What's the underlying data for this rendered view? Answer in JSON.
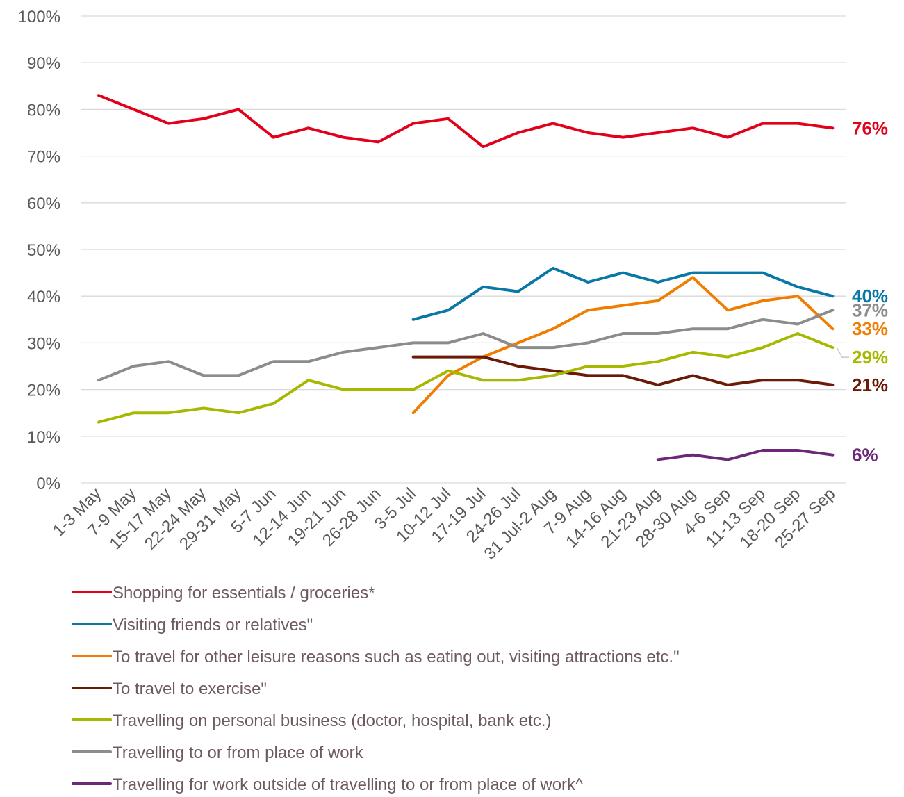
{
  "chart_data": {
    "type": "line",
    "title": "",
    "xlabel": "",
    "ylabel": "",
    "ylim": [
      0,
      100
    ],
    "ytick_labels": [
      "0%",
      "10%",
      "20%",
      "30%",
      "40%",
      "50%",
      "60%",
      "70%",
      "80%",
      "90%",
      "100%"
    ],
    "grid": "horizontal",
    "legend_position": "bottom",
    "categories": [
      "1-3 May",
      "7-9 May",
      "15-17 May",
      "22-24 May",
      "29-31 May",
      "5-7 Jun",
      "12-14 Jun",
      "19-21 Jun",
      "26-28 Jun",
      "3-5 Jul",
      "10-12 Jul",
      "17-19 Jul",
      "24-26 Jul",
      "31 Jul-2 Aug",
      "7-9 Aug",
      "14-16 Aug",
      "21-23 Aug",
      "28-30 Aug",
      "4-6 Sep",
      "11-13 Sep",
      "18-20 Sep",
      "25-27 Sep"
    ],
    "series": [
      {
        "name": "Shopping for essentials / groceries*",
        "color": "#e2001a",
        "end_label": "76%",
        "values": [
          83,
          80,
          77,
          78,
          80,
          74,
          76,
          74,
          73,
          77,
          78,
          72,
          75,
          77,
          75,
          74,
          75,
          76,
          74,
          77,
          77,
          76
        ]
      },
      {
        "name": "Visiting friends or relatives\"",
        "color": "#0a78a6",
        "end_label": "40%",
        "values": [
          null,
          null,
          null,
          null,
          null,
          null,
          null,
          null,
          null,
          35,
          37,
          42,
          41,
          46,
          43,
          45,
          43,
          45,
          45,
          45,
          42,
          40
        ]
      },
      {
        "name": "To travel for other leisure reasons such as eating out, visiting attractions etc.\"",
        "color": "#f07d00",
        "end_label": "33%",
        "values": [
          null,
          null,
          null,
          null,
          null,
          null,
          null,
          null,
          null,
          15,
          23,
          27,
          30,
          33,
          37,
          38,
          39,
          44,
          37,
          39,
          40,
          33
        ]
      },
      {
        "name": "To travel to exercise\"",
        "color": "#6b1a07",
        "end_label": "21%",
        "values": [
          null,
          null,
          null,
          null,
          null,
          null,
          null,
          null,
          null,
          27,
          27,
          27,
          25,
          24,
          23,
          23,
          21,
          23,
          21,
          22,
          22,
          21
        ]
      },
      {
        "name": "Travelling on personal business (doctor, hospital, bank etc.)",
        "color": "#a6b800",
        "end_label": "29%",
        "values": [
          13,
          15,
          15,
          16,
          15,
          17,
          22,
          20,
          20,
          20,
          24,
          22,
          22,
          23,
          25,
          25,
          26,
          28,
          27,
          29,
          32,
          29
        ]
      },
      {
        "name": "Travelling to or from place of work",
        "color": "#8c8c8c",
        "end_label": "37%",
        "values": [
          22,
          25,
          26,
          23,
          23,
          26,
          26,
          28,
          29,
          30,
          30,
          32,
          29,
          29,
          30,
          32,
          32,
          33,
          33,
          35,
          34,
          37
        ]
      },
      {
        "name": "Travelling for work outside of travelling to or from place of work^",
        "color": "#6a2877",
        "end_label": "6%",
        "values": [
          null,
          null,
          null,
          null,
          null,
          null,
          null,
          null,
          null,
          null,
          null,
          null,
          null,
          null,
          null,
          null,
          5,
          6,
          5,
          7,
          7,
          6
        ]
      }
    ]
  }
}
